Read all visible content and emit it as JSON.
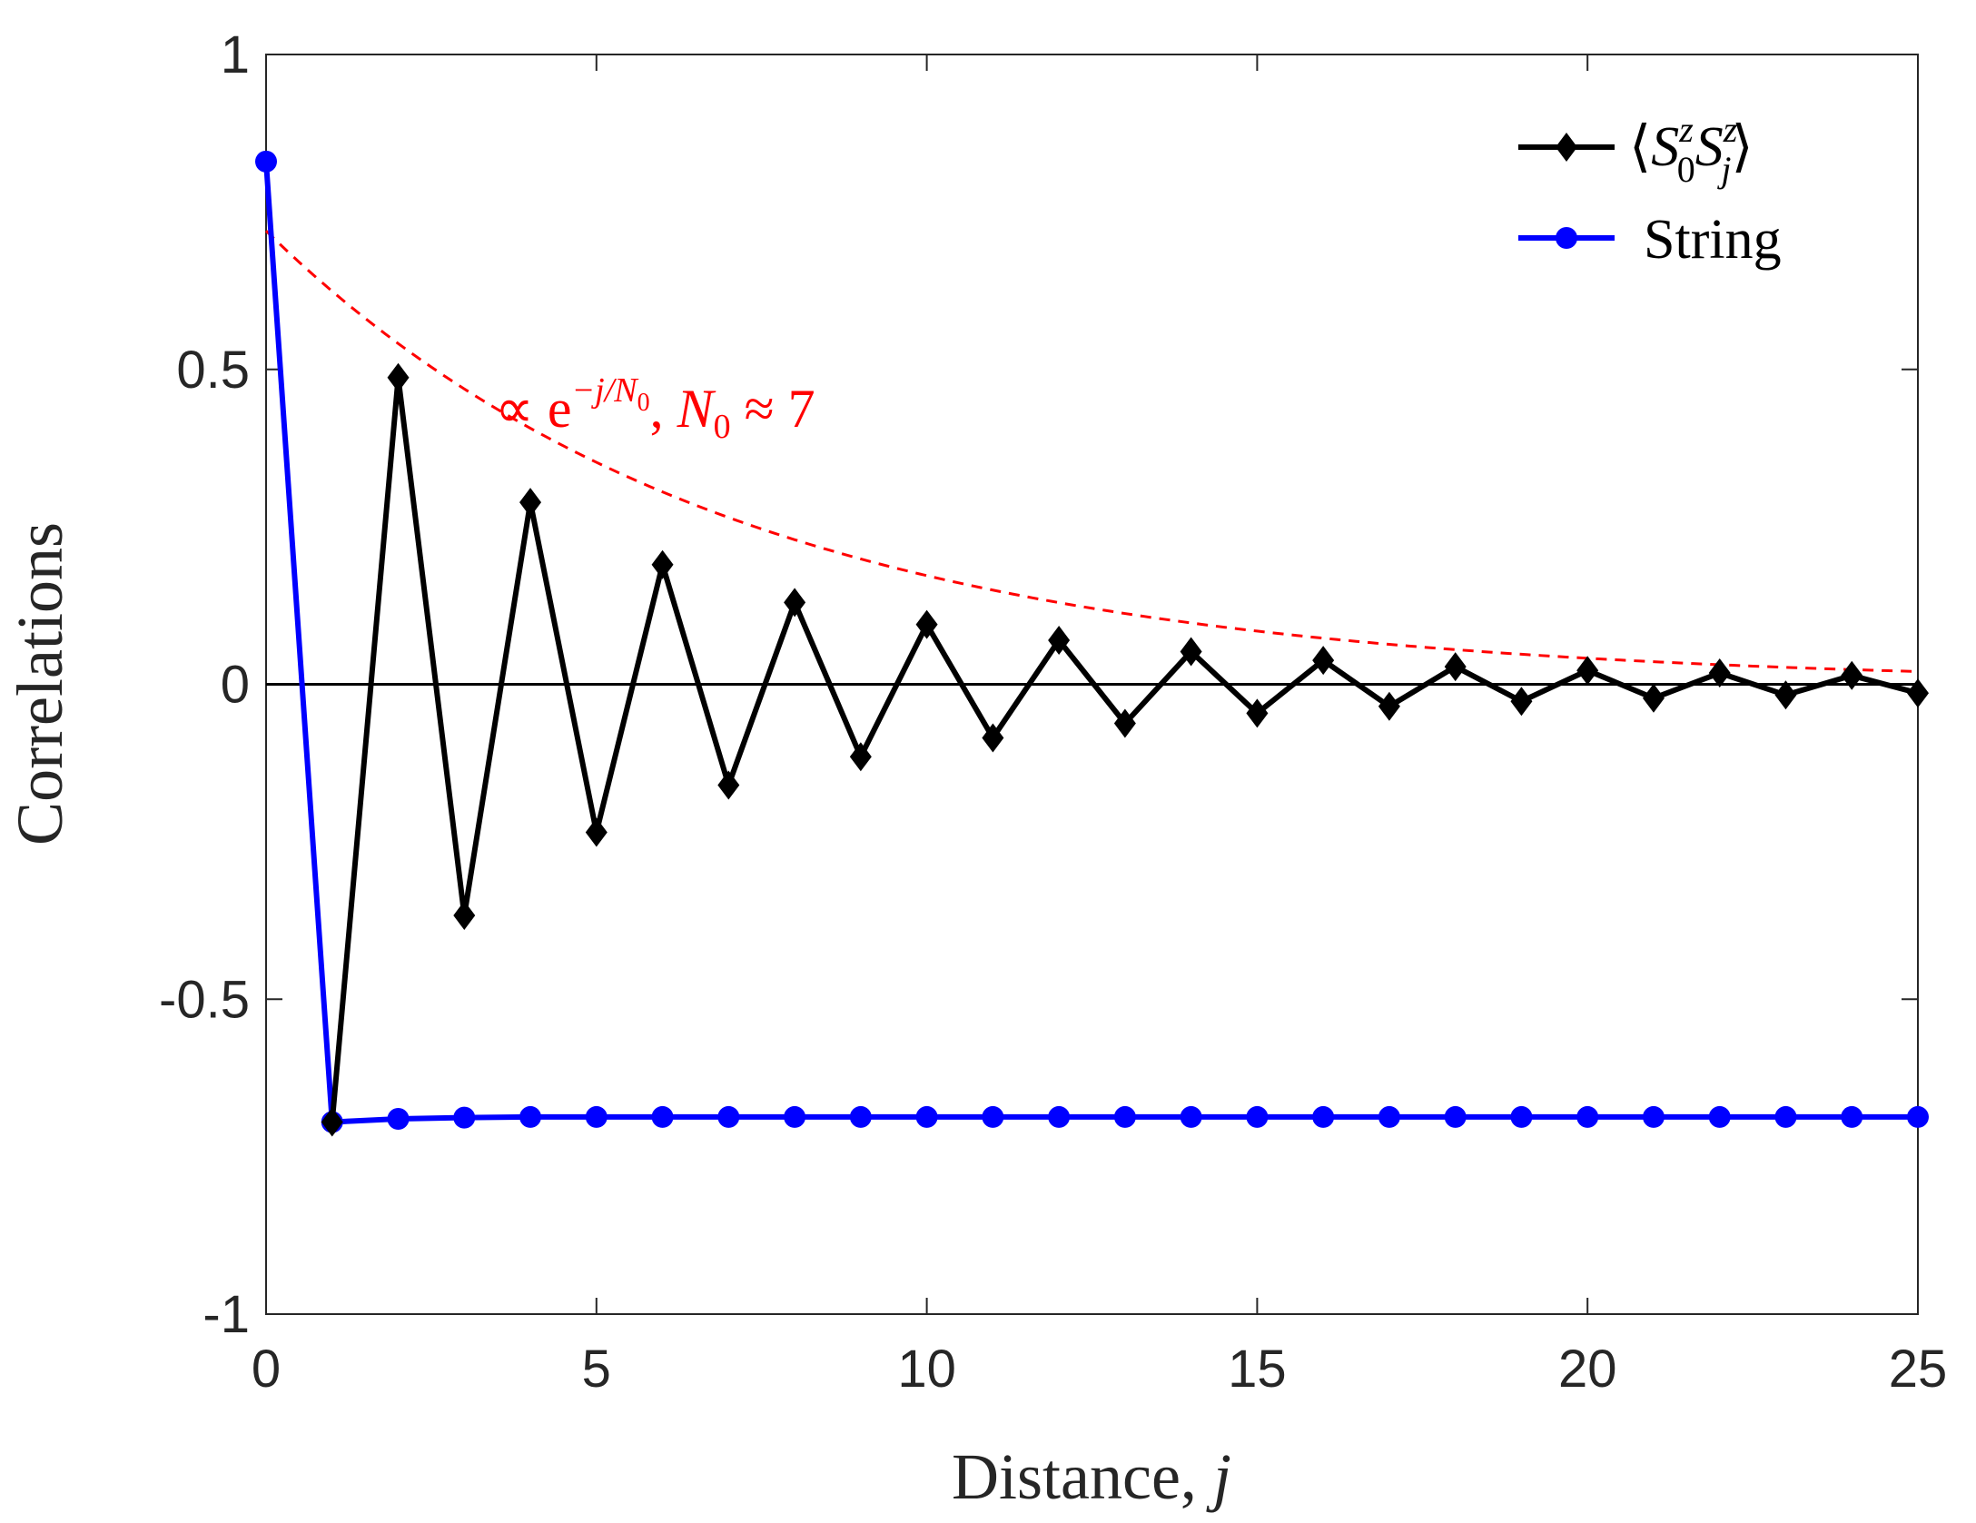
{
  "chart_data": {
    "type": "line",
    "title": "",
    "xlabel": "Distance, j",
    "xlabel_text": "Distance, ",
    "xlabel_var": "j",
    "ylabel": "Correlations",
    "xlim": [
      0,
      25
    ],
    "ylim": [
      -1,
      1
    ],
    "xticks": [
      "0",
      "5",
      "10",
      "15",
      "20",
      "25"
    ],
    "yticks": [
      "-1",
      "-0.5",
      "0",
      "0.5",
      "1"
    ],
    "grid": false,
    "legend_position": "top-right",
    "series": [
      {
        "name": "⟨S0zSjz⟩",
        "legend": {
          "S": "S",
          "sub0": "0",
          "subj": "j",
          "sup": "z"
        },
        "color": "#000000",
        "marker": "diamond",
        "x": [
          1,
          2,
          3,
          4,
          5,
          6,
          7,
          8,
          9,
          10,
          11,
          12,
          13,
          14,
          15,
          16,
          17,
          18,
          19,
          20,
          21,
          22,
          23,
          24,
          25
        ],
        "y": [
          -0.695,
          0.487,
          -0.367,
          0.289,
          -0.235,
          0.19,
          -0.16,
          0.13,
          -0.115,
          0.095,
          -0.085,
          0.07,
          -0.062,
          0.052,
          -0.046,
          0.038,
          -0.035,
          0.028,
          -0.027,
          0.022,
          -0.022,
          0.018,
          -0.017,
          0.014,
          -0.014
        ]
      },
      {
        "name": "String",
        "color": "#0000ff",
        "marker": "circle",
        "x": [
          0,
          1,
          2,
          3,
          4,
          5,
          6,
          7,
          8,
          9,
          10,
          11,
          12,
          13,
          14,
          15,
          16,
          17,
          18,
          19,
          20,
          21,
          22,
          23,
          24,
          25
        ],
        "y": [
          0.83,
          -0.695,
          -0.69,
          -0.688,
          -0.687,
          -0.687,
          -0.687,
          -0.687,
          -0.687,
          -0.687,
          -0.687,
          -0.687,
          -0.687,
          -0.687,
          -0.687,
          -0.687,
          -0.687,
          -0.687,
          -0.687,
          -0.687,
          -0.687,
          -0.687,
          -0.687,
          -0.687,
          -0.687,
          -0.687
        ]
      }
    ],
    "reference_line": {
      "y": 0,
      "color": "#000000"
    },
    "fit": {
      "formula": "∝ e^{-j/N0}, N0 ≈ 7",
      "amplitude": 0.72,
      "N0": 7,
      "color": "#ff0000",
      "style": "dashed",
      "label": {
        "prop": "∝ e",
        "exp_minus_j": "−j/N",
        "exp_sub": "0",
        "comma": ", ",
        "N": "N",
        "sub0": "0",
        "approx": " ≈ 7"
      }
    }
  }
}
